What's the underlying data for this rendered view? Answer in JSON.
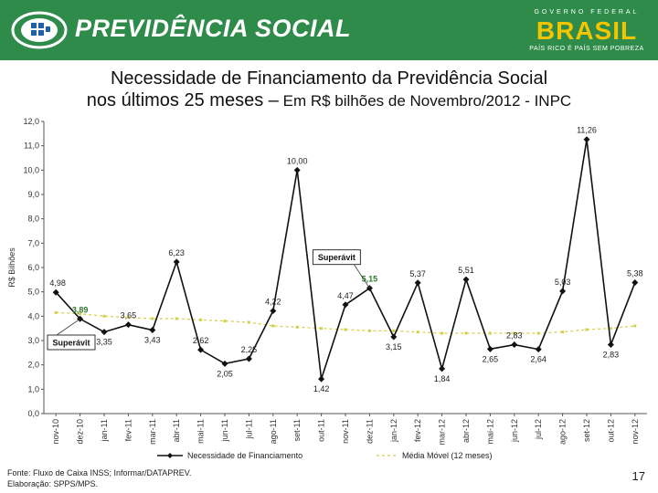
{
  "header": {
    "brand": "PREVIDÊNCIA SOCIAL",
    "gov_top": "GOVERNO FEDERAL",
    "gov_main": "BRASIL",
    "gov_sub": "PAÍS RICO É PAÍS SEM POBREZA"
  },
  "title": {
    "line1": "Necessidade de Financiamento da Previdência Social",
    "line2_main": "nos últimos 25 meses –",
    "line2_small": " Em R$ bilhões de Novembro/2012 - INPC"
  },
  "footer": {
    "source": "Fonte: Fluxo de Caixa INSS; Informar/DATAPREV.",
    "elaboration": "Elaboração: SPPS/MPS."
  },
  "page_number": "17",
  "colors": {
    "header_green": "#2e8b4a",
    "series_line": "#111111",
    "moving_avg": "#d4cf4a",
    "highlight_label": "#2f7a2f"
  },
  "chart_data": {
    "type": "line",
    "ylabel": "R$ Bilhões",
    "ylim": [
      0,
      12
    ],
    "yticks": [
      "0,0",
      "1,0",
      "2,0",
      "3,0",
      "4,0",
      "5,0",
      "6,0",
      "7,0",
      "8,0",
      "9,0",
      "10,0",
      "11,0",
      "12,0"
    ],
    "categories": [
      "nov-10",
      "dez-10",
      "jan-11",
      "fev-11",
      "mar-11",
      "abr-11",
      "mai-11",
      "jun-11",
      "jul-11",
      "ago-11",
      "set-11",
      "out-11",
      "nov-11",
      "dez-11",
      "jan-12",
      "fev-12",
      "mar-12",
      "abr-12",
      "mai-12",
      "jun-12",
      "jul-12",
      "ago-12",
      "set-12",
      "out-12",
      "nov-12"
    ],
    "series": [
      {
        "name": "Necessidade de Financiamento",
        "values": [
          4.98,
          3.89,
          3.35,
          3.65,
          3.43,
          6.23,
          2.62,
          2.05,
          2.25,
          4.22,
          10.0,
          1.42,
          4.47,
          5.15,
          3.15,
          5.37,
          1.84,
          5.51,
          2.65,
          2.83,
          2.64,
          5.03,
          11.26,
          2.83,
          5.38
        ],
        "labels": [
          "4,98",
          "3,89",
          "3,35",
          "3,65",
          "3,43",
          "6,23",
          "2,62",
          "2,05",
          "2,25",
          "4,22",
          "10,00",
          "1,42",
          "4,47",
          "5,15",
          "3,15",
          "5,37",
          "1,84",
          "5,51",
          "2,65",
          "2,83",
          "2,64",
          "5,03",
          "11,26",
          "2,83",
          "5,38"
        ]
      },
      {
        "name": "Média Móvel (12 meses)",
        "values": [
          4.15,
          4.1,
          4.0,
          3.95,
          3.9,
          3.9,
          3.85,
          3.8,
          3.75,
          3.6,
          3.55,
          3.5,
          3.45,
          3.4,
          3.4,
          3.35,
          3.3,
          3.3,
          3.3,
          3.3,
          3.3,
          3.35,
          3.45,
          3.5,
          3.6
        ]
      }
    ],
    "annotations": [
      {
        "text": "Superávit",
        "point_index": 1
      },
      {
        "text": "Superávit",
        "point_index": 13
      }
    ],
    "legend": "bottom"
  }
}
